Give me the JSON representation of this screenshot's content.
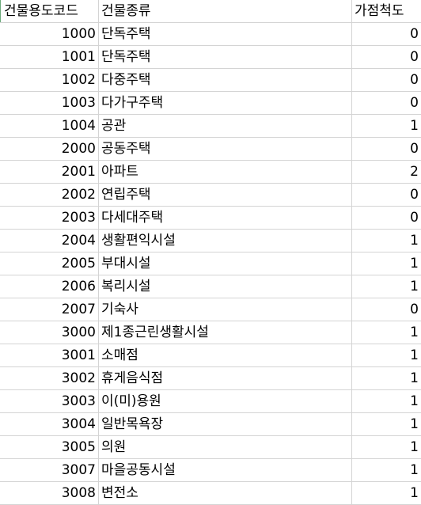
{
  "headers": {
    "code": "건물용도코드",
    "type": "건물종류",
    "score": "가점척도"
  },
  "rows": [
    {
      "code": "1000",
      "type": "단독주택",
      "score": "0"
    },
    {
      "code": "1001",
      "type": "단독주택",
      "score": "0"
    },
    {
      "code": "1002",
      "type": "다중주택",
      "score": "0"
    },
    {
      "code": "1003",
      "type": "다가구주택",
      "score": "0"
    },
    {
      "code": "1004",
      "type": "공관",
      "score": "1"
    },
    {
      "code": "2000",
      "type": "공동주택",
      "score": "0"
    },
    {
      "code": "2001",
      "type": "아파트",
      "score": "2"
    },
    {
      "code": "2002",
      "type": "연립주택",
      "score": "0"
    },
    {
      "code": "2003",
      "type": "다세대주택",
      "score": "0"
    },
    {
      "code": "2004",
      "type": "생활편익시설",
      "score": "1"
    },
    {
      "code": "2005",
      "type": "부대시설",
      "score": "1"
    },
    {
      "code": "2006",
      "type": "복리시설",
      "score": "1"
    },
    {
      "code": "2007",
      "type": "기숙사",
      "score": "0"
    },
    {
      "code": "3000",
      "type": "제1종근린생활시설",
      "score": "1"
    },
    {
      "code": "3001",
      "type": "소매점",
      "score": "1"
    },
    {
      "code": "3002",
      "type": "휴게음식점",
      "score": "1"
    },
    {
      "code": "3003",
      "type": "이(미)용원",
      "score": "1"
    },
    {
      "code": "3004",
      "type": "일반목욕장",
      "score": "1"
    },
    {
      "code": "3005",
      "type": "의원",
      "score": "1"
    },
    {
      "code": "3007",
      "type": "마을공동시설",
      "score": "1"
    },
    {
      "code": "3008",
      "type": "변전소",
      "score": "1"
    }
  ]
}
